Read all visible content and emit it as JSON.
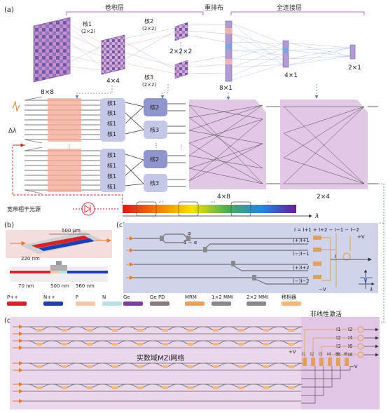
{
  "panel_labels": {
    "a": "(a)",
    "b": "(b)",
    "c": "(c)",
    "d": "(d)"
  },
  "top": {
    "conv_layer": "卷积层",
    "reshape": "重排布",
    "fc_layer": "全连接层",
    "kernel1": "核1",
    "kernel1_size": "(2×2)",
    "kernel2": "核2",
    "kernel2_size": "(2×2)",
    "kernel3": "核3",
    "kernel3_size": "(2×2)",
    "size_8x8": "8×8",
    "size_4x4": "4×4",
    "size_2x2x2": "2×2×2",
    "size_8x1": "8×1",
    "size_4x1": "4×1",
    "size_2x1": "2×1"
  },
  "middle": {
    "delta_lambda": "Δλ",
    "kernel_blocks": [
      "核1",
      "核1",
      "核1",
      "核1",
      "核1",
      "核1",
      "核1",
      "核1"
    ],
    "k2_blocks": [
      "核2",
      "核3",
      "核2",
      "核3"
    ],
    "size_4x8": "4×8",
    "size_2x4": "2×4",
    "ellipsis": "⋮"
  },
  "source": {
    "laser": "宽带相干光源",
    "lambda": "λ",
    "dots": "···"
  },
  "b": {
    "width": "500 μm",
    "t220": "220 nm",
    "t70": "70 nm",
    "w500": "500 nm",
    "w560": "560 nm"
  },
  "c": {
    "alpha": "α",
    "alpha_eq": "1 − α",
    "formula": "I = I+1 + I+2 − I−1 − I−2",
    "plus_v": "+V",
    "minus_v": "−V",
    "i_label": "I",
    "lambda": "λ",
    "pd_labels": [
      "(+)I+1",
      "(−)I−1",
      "(+)I+2",
      "(−)I−2"
    ]
  },
  "legend": [
    {
      "label": "P++",
      "color": "#d4232a"
    },
    {
      "label": "N++",
      "color": "#1f3fae"
    },
    {
      "label": "P",
      "color": "#f5c7a4"
    },
    {
      "label": "N",
      "color": "#b8e0e4"
    },
    {
      "label": "Ge",
      "color": "#7b3fa0"
    },
    {
      "label": "Ge PD",
      "color": "#8a7a7a"
    },
    {
      "label": "MRM",
      "color": "#e8a05e"
    },
    {
      "label": "1×2 MMI",
      "color": "#888888"
    },
    {
      "label": "2×2 MMI",
      "color": "#888888"
    },
    {
      "label": "移相器",
      "color": "#f5b87a"
    }
  ],
  "d": {
    "network": "实数域MZI网络",
    "nonlinear": "非线性激活",
    "diffs": [
      "I1 − I2",
      "I2 − I4",
      "I3 − I6",
      "I4 − I8"
    ],
    "plus_v": "+V",
    "minus_v": "−V",
    "pd_i": [
      "I1",
      "I2",
      "I3",
      "I4",
      "I5",
      "I6"
    ]
  },
  "colors": {
    "purple_region": "#ead7ec",
    "blue_region": "#cfd4ea",
    "orange_arrow": "#e87a2b",
    "red_dashed": "#c62828",
    "blue_dashed": "#5b7bb6"
  }
}
